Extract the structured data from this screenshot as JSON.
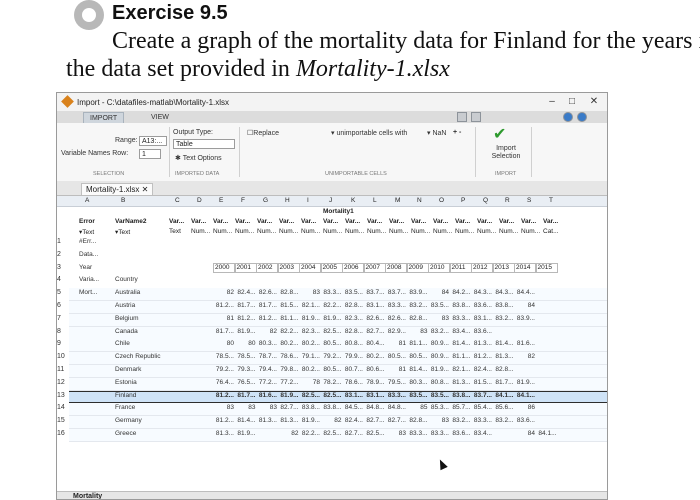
{
  "exercise": {
    "title": "Exercise 9.5",
    "line1": "Create a graph of the mortality data for Finland for the years in",
    "line2_prefix": "the data set provided in ",
    "line2_file": "Mortality-1.xlsx"
  },
  "window": {
    "title": "Import - C:\\datafiles-matlab\\Mortality-1.xlsx",
    "tabs": [
      "IMPORT",
      "VIEW"
    ],
    "minimize": "–",
    "maximize": "□",
    "close": "✕"
  },
  "toolstrip": {
    "range_label": "Range:",
    "range_value": "A13:...",
    "varnames_label": "Variable Names Row:",
    "varnames_value": "1",
    "output_type_label": "Output Type:",
    "output_type_value": "Table",
    "text_options": "Text Options",
    "replace_label": "Replace",
    "unimportable_label": "unimportable cells with",
    "nan_value": "NaN",
    "plus_minus": "+ -",
    "import_selection": "Import Selection",
    "sections": {
      "selection": "SELECTION",
      "imported_data": "IMPORTED DATA",
      "unimportable": "UNIMPORTABLE CELLS",
      "import": "IMPORT"
    }
  },
  "document_tab": "Mortality-1.xlsx",
  "sheet": {
    "col_letters": [
      "A",
      "B",
      "C",
      "D",
      "E",
      "F",
      "G",
      "H",
      "I",
      "J",
      "K",
      "L",
      "M",
      "N",
      "O",
      "P",
      "Q",
      "R",
      "S",
      "T"
    ],
    "table_title": "Mortality1",
    "var_a": "Error",
    "var_b": "VarName2",
    "type_a": "Text",
    "type_b": "Text",
    "var_repeat": "Var...",
    "type_text": "Text",
    "type_num": "Num...",
    "type_cat": "Cat...",
    "rows": [
      {
        "n": "1",
        "a": "#Err...",
        "b": ""
      },
      {
        "n": "2",
        "a": "Data...",
        "b": ""
      },
      {
        "n": "3",
        "a": "Year",
        "b": ""
      },
      {
        "n": "4",
        "a": "Varia...",
        "b": "Country"
      },
      {
        "n": "5",
        "a": "Mort...",
        "b": "Australia"
      },
      {
        "n": "6",
        "a": "",
        "b": "Austria"
      },
      {
        "n": "7",
        "a": "",
        "b": "Belgium"
      },
      {
        "n": "8",
        "a": "",
        "b": "Canada"
      },
      {
        "n": "9",
        "a": "",
        "b": "Chile"
      },
      {
        "n": "10",
        "a": "",
        "b": "Czech Republic"
      },
      {
        "n": "11",
        "a": "",
        "b": "Denmark"
      },
      {
        "n": "12",
        "a": "",
        "b": "Estonia"
      },
      {
        "n": "13",
        "a": "",
        "b": "Finland"
      },
      {
        "n": "14",
        "a": "",
        "b": "France"
      },
      {
        "n": "15",
        "a": "",
        "b": "Germany"
      },
      {
        "n": "16",
        "a": "",
        "b": "Greece"
      }
    ],
    "years": [
      "2000",
      "2001",
      "2002",
      "2003",
      "2004",
      "2005",
      "2006",
      "2007",
      "2008",
      "2009",
      "2010",
      "2011",
      "2012",
      "2013",
      "2014",
      "2015"
    ],
    "data_rows": [
      [
        "82",
        "82.4...",
        "82.6...",
        "82.8...",
        "83",
        "83.3...",
        "83.5...",
        "83.7...",
        "83.7...",
        "83.9...",
        "84",
        "84.2...",
        "84.3...",
        "84.3...",
        "84.4...",
        ""
      ],
      [
        "81.2...",
        "81.7...",
        "81.7...",
        "81.5...",
        "82.1...",
        "82.2...",
        "82.8...",
        "83.1...",
        "83.3...",
        "83.2...",
        "83.5...",
        "83.8...",
        "83.6...",
        "83.8...",
        "84",
        ""
      ],
      [
        "81",
        "81.2...",
        "81.2...",
        "81.1...",
        "81.9...",
        "81.9...",
        "82.3...",
        "82.6...",
        "82.6...",
        "82.8...",
        "83",
        "83.3...",
        "83.1...",
        "83.2...",
        "83.9...",
        ""
      ],
      [
        "81.7...",
        "81.9...",
        "82",
        "82.2...",
        "82.3...",
        "82.5...",
        "82.8...",
        "82.7...",
        "82.9...",
        "83",
        "83.2...",
        "83.4...",
        "83.6...",
        "",
        "",
        ""
      ],
      [
        "80",
        "80",
        "80.3...",
        "80.2...",
        "80.2...",
        "80.5...",
        "80.8...",
        "80.4...",
        "81",
        "81.1...",
        "80.9...",
        "81.4...",
        "81.3...",
        "81.4...",
        "81.6...",
        ""
      ],
      [
        "78.5...",
        "78.5...",
        "78.7...",
        "78.6...",
        "79.1...",
        "79.2...",
        "79.9...",
        "80.2...",
        "80.5...",
        "80.5...",
        "80.9...",
        "81.1...",
        "81.2...",
        "81.3...",
        "82",
        ""
      ],
      [
        "79.2...",
        "79.3...",
        "79.4...",
        "79.8...",
        "80.2...",
        "80.5...",
        "80.7...",
        "80.6...",
        "81",
        "81.4...",
        "81.9...",
        "82.1...",
        "82.4...",
        "82.8...",
        "",
        ""
      ],
      [
        "76.4...",
        "76.5...",
        "77.2...",
        "77.2...",
        "78",
        "78.2...",
        "78.6...",
        "78.9...",
        "79.5...",
        "80.3...",
        "80.8...",
        "81.3...",
        "81.5...",
        "81.7...",
        "81.9...",
        ""
      ],
      [
        "81.2...",
        "81.7...",
        "81.6...",
        "81.9...",
        "82.5...",
        "82.5...",
        "83.1...",
        "83.1...",
        "83.3...",
        "83.5...",
        "83.5...",
        "83.8...",
        "83.7...",
        "84.1...",
        "84.1...",
        ""
      ],
      [
        "83",
        "83",
        "83",
        "82.7...",
        "83.8...",
        "83.8...",
        "84.5...",
        "84.8...",
        "84.8...",
        "85",
        "85.3...",
        "85.7...",
        "85.4...",
        "85.6...",
        "86",
        ""
      ],
      [
        "81.2...",
        "81.4...",
        "81.3...",
        "81.3...",
        "81.9...",
        "82",
        "82.4...",
        "82.7...",
        "82.7...",
        "82.8...",
        "83",
        "83.2...",
        "83.3...",
        "83.2...",
        "83.6...",
        ""
      ],
      [
        "81.3...",
        "81.9...",
        "",
        "82",
        "82.2...",
        "82.5...",
        "82.7...",
        "82.5...",
        "83",
        "83.3...",
        "83.3...",
        "83.6...",
        "83.4...",
        "",
        "84",
        "84.1..."
      ]
    ]
  },
  "bottom_tab": "Mortality",
  "colors": {
    "selection_blue": "#cfe3f7",
    "finland_border": "#2d2d2d",
    "header_blue": "#e9eef4"
  }
}
